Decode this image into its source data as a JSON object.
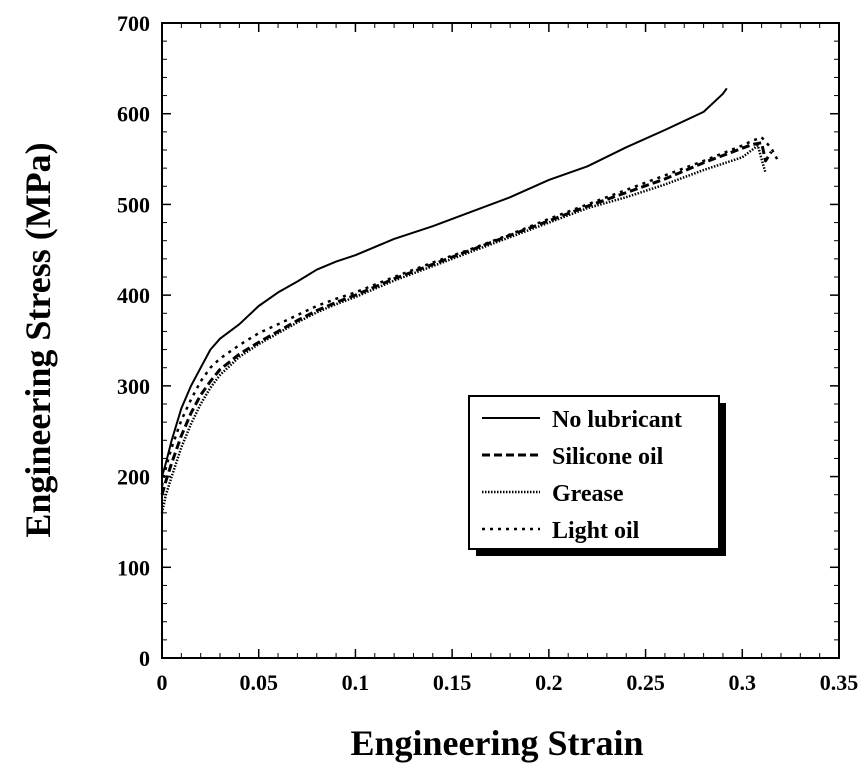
{
  "chart_data": {
    "type": "line",
    "title": "",
    "xlabel": "Engineering Strain",
    "ylabel": "Engineering Stress (MPa)",
    "xlim": [
      0,
      0.35
    ],
    "ylim": [
      0,
      700
    ],
    "xticks": [
      "0",
      "0.05",
      "0.1",
      "0.15",
      "0.2",
      "0.25",
      "0.3",
      "0.35"
    ],
    "yticks": [
      "0",
      "100",
      "200",
      "300",
      "400",
      "500",
      "600",
      "700"
    ],
    "grid": false,
    "legend_position": "inside-lower-right",
    "series": [
      {
        "name": "No lubricant",
        "style": "solid",
        "color": "#000000",
        "x": [
          0,
          0.002,
          0.005,
          0.01,
          0.015,
          0.02,
          0.025,
          0.03,
          0.04,
          0.05,
          0.06,
          0.07,
          0.08,
          0.09,
          0.1,
          0.12,
          0.14,
          0.16,
          0.18,
          0.2,
          0.22,
          0.24,
          0.26,
          0.28,
          0.29,
          0.292
        ],
        "y": [
          200,
          215,
          240,
          275,
          300,
          320,
          340,
          352,
          368,
          388,
          403,
          415,
          428,
          437,
          444,
          462,
          476,
          492,
          508,
          527,
          542,
          563,
          582,
          602,
          622,
          628
        ]
      },
      {
        "name": "Silicone oil",
        "style": "dashed",
        "color": "#000000",
        "x": [
          0,
          0.002,
          0.005,
          0.01,
          0.015,
          0.02,
          0.025,
          0.03,
          0.04,
          0.05,
          0.06,
          0.07,
          0.08,
          0.09,
          0.1,
          0.12,
          0.14,
          0.16,
          0.18,
          0.2,
          0.22,
          0.24,
          0.26,
          0.28,
          0.3,
          0.305,
          0.31,
          0.312,
          0.315
        ],
        "y": [
          180,
          195,
          215,
          245,
          270,
          290,
          305,
          318,
          335,
          348,
          360,
          372,
          383,
          392,
          400,
          418,
          434,
          450,
          466,
          482,
          498,
          513,
          528,
          546,
          562,
          566,
          568,
          548,
          558
        ]
      },
      {
        "name": "Grease",
        "style": "dense-dotted",
        "color": "#000000",
        "x": [
          0,
          0.002,
          0.005,
          0.01,
          0.015,
          0.02,
          0.025,
          0.03,
          0.04,
          0.05,
          0.06,
          0.07,
          0.08,
          0.09,
          0.1,
          0.12,
          0.14,
          0.16,
          0.18,
          0.2,
          0.22,
          0.24,
          0.26,
          0.28,
          0.3,
          0.305,
          0.308,
          0.31,
          0.312
        ],
        "y": [
          160,
          180,
          200,
          232,
          258,
          280,
          298,
          312,
          332,
          346,
          358,
          370,
          381,
          390,
          398,
          416,
          432,
          448,
          464,
          480,
          496,
          508,
          522,
          538,
          552,
          560,
          565,
          550,
          535
        ]
      },
      {
        "name": "Light oil",
        "style": "dotted",
        "color": "#000000",
        "x": [
          0,
          0.002,
          0.005,
          0.01,
          0.015,
          0.02,
          0.025,
          0.03,
          0.04,
          0.05,
          0.06,
          0.07,
          0.08,
          0.09,
          0.1,
          0.12,
          0.14,
          0.16,
          0.18,
          0.2,
          0.22,
          0.24,
          0.26,
          0.28,
          0.3,
          0.305,
          0.31,
          0.315,
          0.318
        ],
        "y": [
          190,
          210,
          232,
          262,
          285,
          305,
          320,
          330,
          345,
          358,
          368,
          378,
          388,
          396,
          403,
          420,
          436,
          451,
          467,
          484,
          500,
          516,
          532,
          548,
          565,
          570,
          574,
          562,
          550
        ]
      }
    ]
  }
}
